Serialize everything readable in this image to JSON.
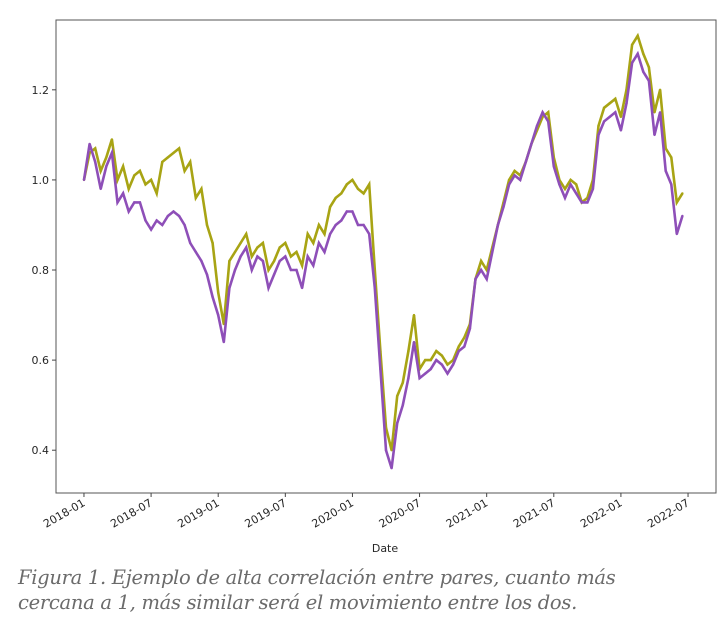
{
  "chart_data": {
    "type": "line",
    "title": "",
    "xlabel": "Date",
    "ylabel": "",
    "ylim": [
      0.305,
      1.355
    ],
    "xlim_months_since_2018_01": [
      -2.5,
      56.5
    ],
    "x_tick_labels": [
      "2018-01",
      "2018-07",
      "2019-01",
      "2019-07",
      "2020-01",
      "2020-07",
      "2021-01",
      "2021-07",
      "2022-01",
      "2022-07"
    ],
    "x_tick_months": [
      0,
      6,
      12,
      18,
      24,
      30,
      36,
      42,
      48,
      54
    ],
    "y_ticks": [
      0.4,
      0.6,
      0.8,
      1.0,
      1.2
    ],
    "y_tick_labels": [
      "0.4",
      "0.6",
      "0.8",
      "1.0",
      "1.2"
    ],
    "grid": false,
    "legend": "none",
    "x_months": [
      0,
      0.5,
      1,
      1.5,
      2,
      2.5,
      3,
      3.5,
      4,
      4.5,
      5,
      5.5,
      6,
      6.5,
      7,
      7.5,
      8,
      8.5,
      9,
      9.5,
      10,
      10.5,
      11,
      11.5,
      12,
      12.5,
      13,
      13.5,
      14,
      14.5,
      15,
      15.5,
      16,
      16.5,
      17,
      17.5,
      18,
      18.5,
      19,
      19.5,
      20,
      20.5,
      21,
      21.5,
      22,
      22.5,
      23,
      23.5,
      24,
      24.5,
      25,
      25.5,
      26,
      26.5,
      27,
      27.5,
      28,
      28.5,
      29,
      29.5,
      30,
      30.5,
      31,
      31.5,
      32,
      32.5,
      33,
      33.5,
      34,
      34.5,
      35,
      35.5,
      36,
      36.5,
      37,
      37.5,
      38,
      38.5,
      39,
      39.5,
      40,
      40.5,
      41,
      41.5,
      42,
      42.5,
      43,
      43.5,
      44,
      44.5,
      45,
      45.5,
      46,
      46.5,
      47,
      47.5,
      48,
      48.5,
      49,
      49.5,
      50,
      50.5,
      51,
      51.5,
      52,
      52.5,
      53,
      53.5
    ],
    "series": [
      {
        "name": "olive",
        "color": "#a8a414",
        "values": [
          1.0,
          1.06,
          1.07,
          1.02,
          1.05,
          1.09,
          1.0,
          1.03,
          0.98,
          1.01,
          1.02,
          0.99,
          1.0,
          0.97,
          1.04,
          1.05,
          1.06,
          1.07,
          1.02,
          1.04,
          0.96,
          0.98,
          0.9,
          0.86,
          0.75,
          0.68,
          0.82,
          0.84,
          0.86,
          0.88,
          0.83,
          0.85,
          0.86,
          0.8,
          0.82,
          0.85,
          0.86,
          0.83,
          0.84,
          0.81,
          0.88,
          0.86,
          0.9,
          0.88,
          0.94,
          0.96,
          0.97,
          0.99,
          1.0,
          0.98,
          0.97,
          0.99,
          0.8,
          0.62,
          0.45,
          0.4,
          0.52,
          0.55,
          0.62,
          0.7,
          0.58,
          0.6,
          0.6,
          0.62,
          0.61,
          0.59,
          0.6,
          0.63,
          0.65,
          0.68,
          0.78,
          0.82,
          0.8,
          0.85,
          0.9,
          0.95,
          1.0,
          1.02,
          1.01,
          1.04,
          1.08,
          1.11,
          1.14,
          1.15,
          1.05,
          1.0,
          0.98,
          1.0,
          0.99,
          0.95,
          0.96,
          1.0,
          1.12,
          1.16,
          1.17,
          1.18,
          1.14,
          1.2,
          1.3,
          1.32,
          1.28,
          1.25,
          1.15,
          1.2,
          1.07,
          1.05,
          0.95,
          0.97
        ]
      },
      {
        "name": "purple",
        "color": "#8e4fb8",
        "values": [
          1.0,
          1.08,
          1.04,
          0.98,
          1.03,
          1.06,
          0.95,
          0.97,
          0.93,
          0.95,
          0.95,
          0.91,
          0.89,
          0.91,
          0.9,
          0.92,
          0.93,
          0.92,
          0.9,
          0.86,
          0.84,
          0.82,
          0.79,
          0.74,
          0.7,
          0.64,
          0.76,
          0.8,
          0.83,
          0.85,
          0.8,
          0.83,
          0.82,
          0.76,
          0.79,
          0.82,
          0.83,
          0.8,
          0.8,
          0.76,
          0.83,
          0.81,
          0.86,
          0.84,
          0.88,
          0.9,
          0.91,
          0.93,
          0.93,
          0.9,
          0.9,
          0.88,
          0.76,
          0.58,
          0.4,
          0.36,
          0.46,
          0.5,
          0.56,
          0.64,
          0.56,
          0.57,
          0.58,
          0.6,
          0.59,
          0.57,
          0.59,
          0.62,
          0.63,
          0.67,
          0.78,
          0.8,
          0.78,
          0.84,
          0.9,
          0.94,
          0.99,
          1.01,
          1.0,
          1.04,
          1.08,
          1.12,
          1.15,
          1.13,
          1.03,
          0.99,
          0.96,
          0.99,
          0.97,
          0.95,
          0.95,
          0.98,
          1.1,
          1.13,
          1.14,
          1.15,
          1.11,
          1.17,
          1.26,
          1.28,
          1.24,
          1.22,
          1.1,
          1.15,
          1.02,
          0.99,
          0.88,
          0.92
        ]
      }
    ]
  },
  "caption": {
    "line1": "Figura 1. Ejemplo de alta correlación entre pares, cuanto más",
    "line2": "cercana a 1, más similar será el movimiento entre los dos."
  }
}
